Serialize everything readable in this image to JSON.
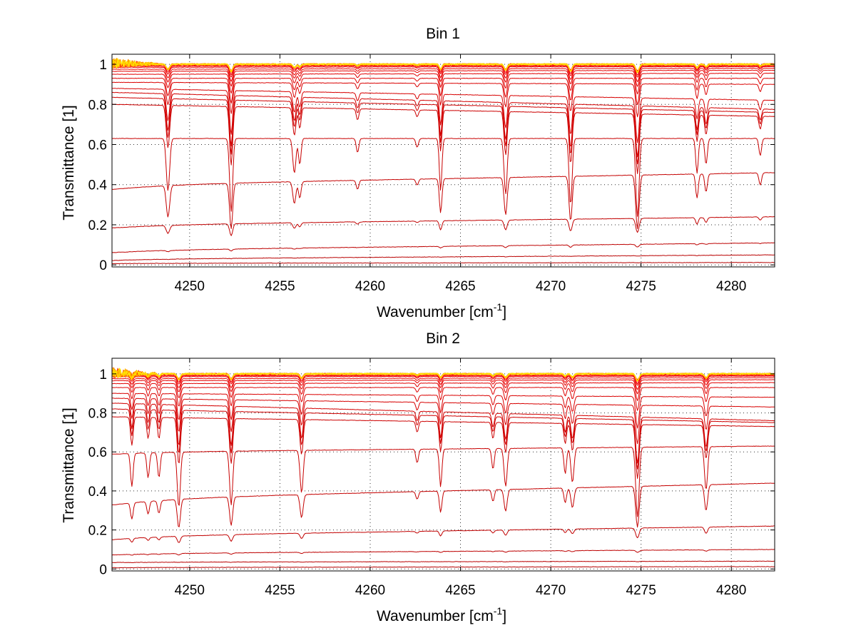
{
  "chart_data": [
    {
      "type": "line",
      "title": "Bin 1",
      "xlabel": "Wavenumber [cm",
      "xlabel_sup": "-1",
      "xlabel_end": "]",
      "ylabel": "Transmittance [1]",
      "xlim": [
        4245.7,
        4282.4
      ],
      "ylim": [
        -0.01,
        1.05
      ],
      "xticks": [
        4250,
        4255,
        4260,
        4265,
        4270,
        4275,
        4280
      ],
      "xtick_labels": [
        "4250",
        "4255",
        "4260",
        "4265",
        "4270",
        "4275",
        "4280"
      ],
      "yticks": [
        0,
        0.2,
        0.4,
        0.6,
        0.8,
        1
      ],
      "ytick_labels": [
        "0",
        "0.2",
        "0.4",
        "0.6",
        "0.8",
        "1"
      ],
      "grid": true,
      "colormap": "autumn (red to yellow)",
      "series_count": 30,
      "baselines": {
        "start": [
          0.008,
          0.03,
          0.075,
          0.2,
          0.4,
          0.63,
          0.8,
          0.835,
          0.86,
          0.88,
          0.91,
          0.93,
          0.95,
          0.965,
          0.975,
          0.985,
          0.99,
          0.995,
          0.997,
          0.999
        ],
        "end": [
          0.012,
          0.05,
          0.11,
          0.24,
          0.46,
          0.63,
          0.74,
          0.76,
          0.775,
          0.82,
          0.9,
          0.93,
          0.955,
          0.97,
          0.98,
          0.988,
          0.992,
          0.996,
          0.998,
          1.0
        ]
      },
      "absorption_lines": [
        {
          "x": 4248.8,
          "depth": 0.3,
          "width": 0.13
        },
        {
          "x": 4252.3,
          "depth": 0.42,
          "width": 0.12
        },
        {
          "x": 4255.8,
          "depth": 0.2,
          "width": 0.12
        },
        {
          "x": 4256.1,
          "depth": 0.15,
          "width": 0.1
        },
        {
          "x": 4259.3,
          "depth": 0.08,
          "width": 0.1
        },
        {
          "x": 4262.6,
          "depth": 0.05,
          "width": 0.1
        },
        {
          "x": 4263.9,
          "depth": 0.3,
          "width": 0.1
        },
        {
          "x": 4267.5,
          "depth": 0.32,
          "width": 0.12
        },
        {
          "x": 4271.1,
          "depth": 0.38,
          "width": 0.12
        },
        {
          "x": 4274.8,
          "depth": 0.45,
          "width": 0.13
        },
        {
          "x": 4278.1,
          "depth": 0.2,
          "width": 0.1
        },
        {
          "x": 4278.6,
          "depth": 0.15,
          "width": 0.1
        },
        {
          "x": 4281.6,
          "depth": 0.1,
          "width": 0.1
        }
      ]
    },
    {
      "type": "line",
      "title": "Bin 2",
      "xlabel": "Wavenumber [cm",
      "xlabel_sup": "-1",
      "xlabel_end": "]",
      "ylabel": "Transmittance [1]",
      "xlim": [
        4245.7,
        4282.4
      ],
      "ylim": [
        -0.01,
        1.08
      ],
      "xticks": [
        4250,
        4255,
        4260,
        4265,
        4270,
        4275,
        4280
      ],
      "xtick_labels": [
        "4250",
        "4255",
        "4260",
        "4265",
        "4270",
        "4275",
        "4280"
      ],
      "yticks": [
        0,
        0.2,
        0.4,
        0.6,
        0.8,
        1
      ],
      "ytick_labels": [
        "0",
        "0.2",
        "0.4",
        "0.6",
        "0.8",
        "1"
      ],
      "grid": true,
      "colormap": "autumn (red to yellow)",
      "series_count": 30,
      "baselines": {
        "start": [
          0.008,
          0.035,
          0.08,
          0.17,
          0.36,
          0.6,
          0.78,
          0.82,
          0.85,
          0.875,
          0.9,
          0.93,
          0.95,
          0.965,
          0.975,
          0.985,
          0.99,
          0.995,
          0.997,
          0.999
        ],
        "end": [
          0.012,
          0.04,
          0.1,
          0.22,
          0.44,
          0.63,
          0.73,
          0.75,
          0.76,
          0.83,
          0.88,
          0.93,
          0.955,
          0.97,
          0.98,
          0.988,
          0.992,
          0.996,
          0.998,
          1.0
        ]
      },
      "absorption_lines": [
        {
          "x": 4246.8,
          "depth": 0.2,
          "width": 0.1
        },
        {
          "x": 4247.7,
          "depth": 0.15,
          "width": 0.1
        },
        {
          "x": 4248.3,
          "depth": 0.15,
          "width": 0.1
        },
        {
          "x": 4249.4,
          "depth": 0.33,
          "width": 0.12
        },
        {
          "x": 4252.3,
          "depth": 0.32,
          "width": 0.12
        },
        {
          "x": 4256.2,
          "depth": 0.25,
          "width": 0.12
        },
        {
          "x": 4262.6,
          "depth": 0.08,
          "width": 0.1
        },
        {
          "x": 4263.9,
          "depth": 0.22,
          "width": 0.1
        },
        {
          "x": 4266.8,
          "depth": 0.12,
          "width": 0.1
        },
        {
          "x": 4267.5,
          "depth": 0.22,
          "width": 0.12
        },
        {
          "x": 4270.8,
          "depth": 0.15,
          "width": 0.1
        },
        {
          "x": 4271.2,
          "depth": 0.2,
          "width": 0.12
        },
        {
          "x": 4274.8,
          "depth": 0.4,
          "width": 0.13
        },
        {
          "x": 4278.6,
          "depth": 0.25,
          "width": 0.12
        }
      ]
    }
  ]
}
